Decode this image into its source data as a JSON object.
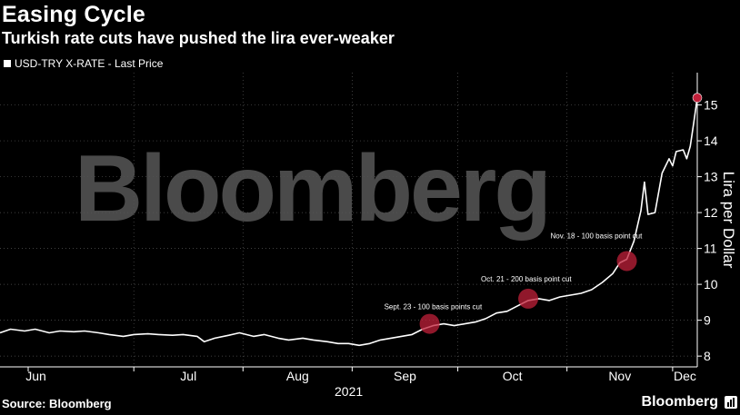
{
  "header": {
    "title": "Easing Cycle",
    "subtitle": "Turkish rate cuts have pushed the lira ever-weaker"
  },
  "footer": {
    "source": "Source: Bloomberg",
    "brand": "Bloomberg"
  },
  "watermark": "Bloomberg",
  "colors": {
    "background": "#000000",
    "line": "#ffffff",
    "marker": "#c0203a",
    "gridline": "#555555",
    "watermark": "#4a4a4a"
  },
  "chart_data": {
    "type": "line",
    "legend": "USD-TRY X-RATE - Last Price",
    "legend_placement": "top-left",
    "ylabel": "Lira per Dollar",
    "y_axis_side": "right",
    "ylim": [
      7.7,
      15.9
    ],
    "yticks": [
      8,
      9,
      10,
      11,
      12,
      13,
      14,
      15
    ],
    "grid": true,
    "xlim": [
      "2021-05-24",
      "2021-12-08"
    ],
    "xticks": [
      {
        "date": "2021-06-01",
        "label": "Jun"
      },
      {
        "date": "2021-07-01",
        "label": "Jul"
      },
      {
        "date": "2021-08-01",
        "label": "Aug"
      },
      {
        "date": "2021-09-01",
        "label": "Sep"
      },
      {
        "date": "2021-10-01",
        "label": "Oct"
      },
      {
        "date": "2021-11-01",
        "label": "Nov"
      },
      {
        "date": "2021-12-01",
        "label": "Dec"
      }
    ],
    "year_label": "2021",
    "series": [
      {
        "name": "USD-TRY X-RATE - Last Price",
        "points": [
          [
            "2021-05-24",
            8.65
          ],
          [
            "2021-05-27",
            8.75
          ],
          [
            "2021-05-31",
            8.7
          ],
          [
            "2021-06-03",
            8.75
          ],
          [
            "2021-06-07",
            8.65
          ],
          [
            "2021-06-10",
            8.7
          ],
          [
            "2021-06-14",
            8.68
          ],
          [
            "2021-06-17",
            8.7
          ],
          [
            "2021-06-21",
            8.65
          ],
          [
            "2021-06-24",
            8.6
          ],
          [
            "2021-06-28",
            8.55
          ],
          [
            "2021-07-01",
            8.6
          ],
          [
            "2021-07-05",
            8.62
          ],
          [
            "2021-07-08",
            8.6
          ],
          [
            "2021-07-12",
            8.58
          ],
          [
            "2021-07-15",
            8.6
          ],
          [
            "2021-07-19",
            8.55
          ],
          [
            "2021-07-21",
            8.4
          ],
          [
            "2021-07-24",
            8.5
          ],
          [
            "2021-07-28",
            8.58
          ],
          [
            "2021-07-31",
            8.65
          ],
          [
            "2021-08-04",
            8.55
          ],
          [
            "2021-08-07",
            8.6
          ],
          [
            "2021-08-11",
            8.5
          ],
          [
            "2021-08-14",
            8.45
          ],
          [
            "2021-08-18",
            8.5
          ],
          [
            "2021-08-21",
            8.45
          ],
          [
            "2021-08-25",
            8.4
          ],
          [
            "2021-08-28",
            8.35
          ],
          [
            "2021-08-31",
            8.35
          ],
          [
            "2021-09-03",
            8.3
          ],
          [
            "2021-09-06",
            8.35
          ],
          [
            "2021-09-09",
            8.45
          ],
          [
            "2021-09-12",
            8.5
          ],
          [
            "2021-09-15",
            8.55
          ],
          [
            "2021-09-18",
            8.6
          ],
          [
            "2021-09-21",
            8.75
          ],
          [
            "2021-09-24",
            8.85
          ],
          [
            "2021-09-27",
            8.9
          ],
          [
            "2021-09-30",
            8.85
          ],
          [
            "2021-10-03",
            8.9
          ],
          [
            "2021-10-06",
            8.95
          ],
          [
            "2021-10-09",
            9.05
          ],
          [
            "2021-10-12",
            9.2
          ],
          [
            "2021-10-15",
            9.25
          ],
          [
            "2021-10-18",
            9.4
          ],
          [
            "2021-10-21",
            9.55
          ],
          [
            "2021-10-24",
            9.6
          ],
          [
            "2021-10-27",
            9.55
          ],
          [
            "2021-10-30",
            9.65
          ],
          [
            "2021-11-02",
            9.7
          ],
          [
            "2021-11-05",
            9.75
          ],
          [
            "2021-11-08",
            9.85
          ],
          [
            "2021-11-11",
            10.05
          ],
          [
            "2021-11-14",
            10.3
          ],
          [
            "2021-11-16",
            10.6
          ],
          [
            "2021-11-18",
            10.7
          ],
          [
            "2021-11-20",
            11.2
          ],
          [
            "2021-11-22",
            12.05
          ],
          [
            "2021-11-23",
            12.85
          ],
          [
            "2021-11-24",
            11.95
          ],
          [
            "2021-11-26",
            12.0
          ],
          [
            "2021-11-28",
            13.1
          ],
          [
            "2021-11-30",
            13.5
          ],
          [
            "2021-12-01",
            13.3
          ],
          [
            "2021-12-02",
            13.7
          ],
          [
            "2021-12-04",
            13.75
          ],
          [
            "2021-12-05",
            13.5
          ],
          [
            "2021-12-06",
            13.85
          ],
          [
            "2021-12-07",
            14.5
          ],
          [
            "2021-12-08",
            15.2
          ]
        ]
      }
    ],
    "annotations": [
      {
        "text": "Sept. 23 - 100 basis points cut",
        "date": "2021-09-23",
        "value": 8.9
      },
      {
        "text": "Oct. 21 - 200 basis point cut",
        "date": "2021-10-21",
        "value": 9.6
      },
      {
        "text": "Nov. 18 - 100 basis point cut",
        "date": "2021-11-18",
        "value": 10.65
      }
    ],
    "end_marker": {
      "date": "2021-12-08",
      "value": 15.2
    }
  }
}
